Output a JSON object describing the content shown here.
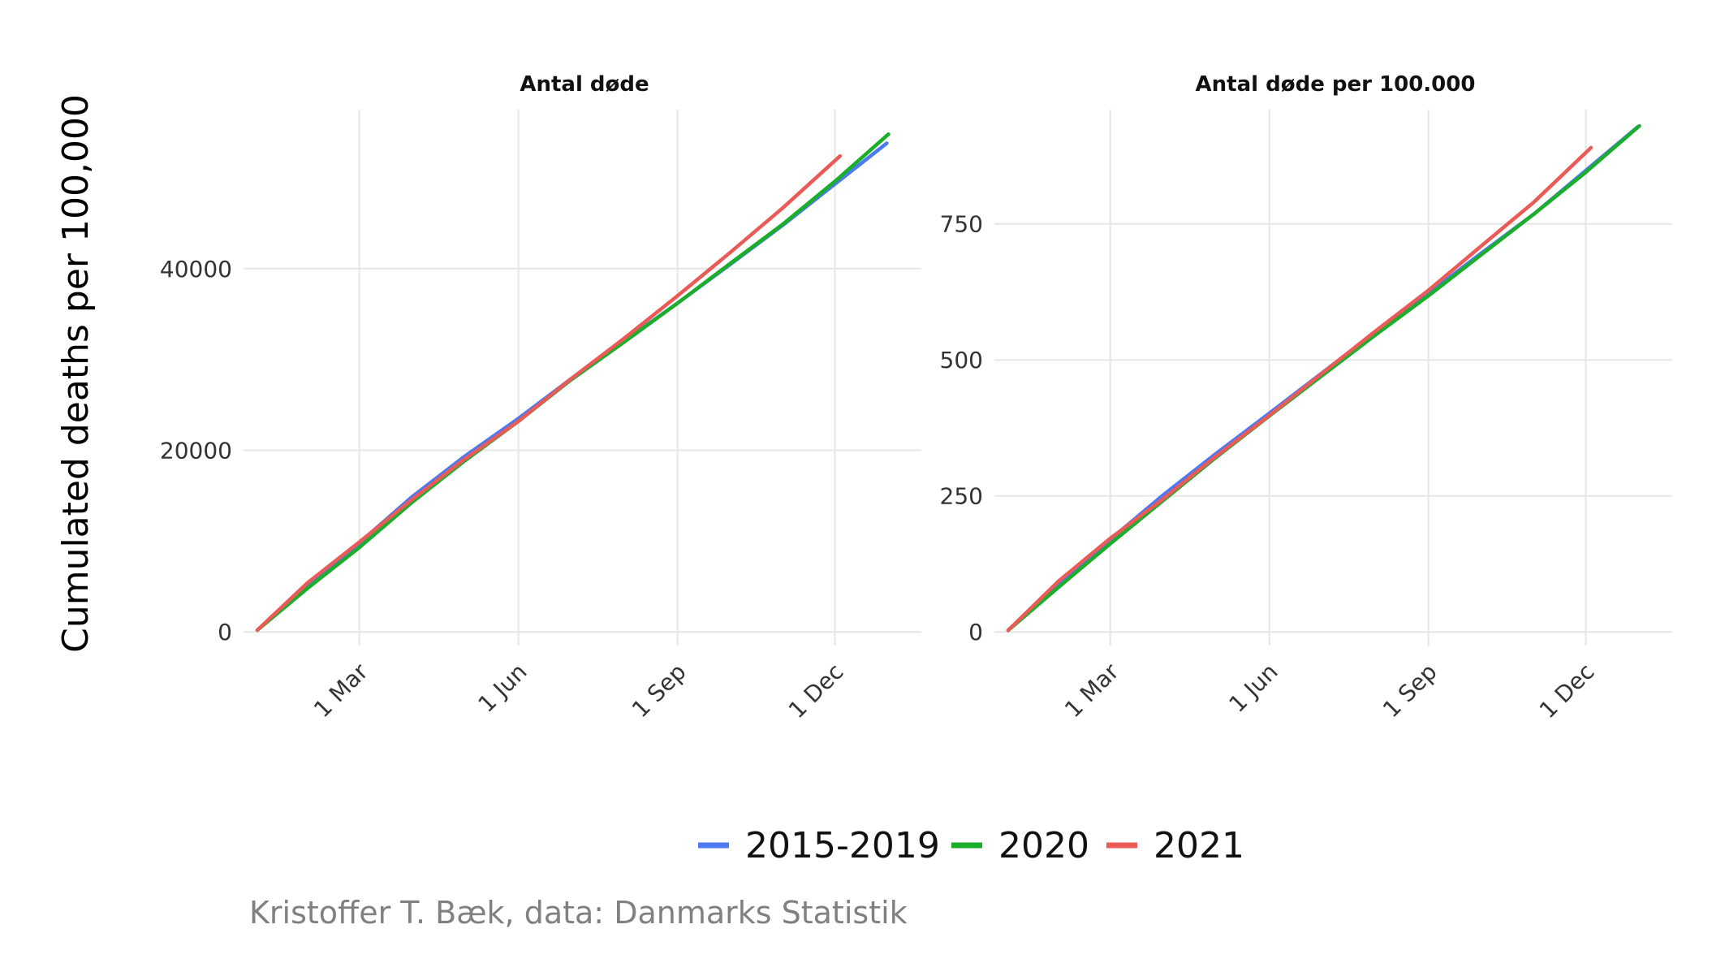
{
  "ylabel": "Cumulated deaths per 100,000",
  "caption": "Kristoffer T. Bæk, data: Danmarks Statistik",
  "colors": {
    "2015-2019": "#4d79f2",
    "2020": "#1aae2a",
    "2021": "#ea5a57"
  },
  "legend": {
    "placement": "bottom",
    "items": [
      {
        "label": "2015-2019",
        "color": "#4d79f2"
      },
      {
        "label": "2020",
        "color": "#1aae2a"
      },
      {
        "label": "2021",
        "color": "#ea5a57"
      }
    ]
  },
  "chart_data": [
    {
      "type": "line",
      "title": "Antal døde",
      "x_unit": "day of year",
      "x_ticks": [
        {
          "label": "1 Mar",
          "day": 60
        },
        {
          "label": "1 Jun",
          "day": 152
        },
        {
          "label": "1 Sep",
          "day": 244
        },
        {
          "label": "1 Dec",
          "day": 335
        }
      ],
      "xlim": [
        -7,
        385
      ],
      "y_ticks": [
        0,
        20000,
        40000
      ],
      "ylim": [
        -1500,
        57500
      ],
      "grid": true,
      "series": [
        {
          "name": "2015-2019",
          "color": "#4d79f2",
          "x": [
            1,
            30,
            60,
            90,
            120,
            152,
            182,
            213,
            244,
            274,
            305,
            335,
            365
          ],
          "y": [
            200,
            5100,
            9800,
            14800,
            19200,
            23500,
            27800,
            32000,
            36200,
            40400,
            44800,
            49300,
            53800
          ]
        },
        {
          "name": "2020",
          "color": "#1aae2a",
          "x": [
            1,
            30,
            60,
            90,
            120,
            152,
            182,
            213,
            244,
            274,
            305,
            335,
            366
          ],
          "y": [
            200,
            4800,
            9300,
            14200,
            18700,
            23200,
            27700,
            31900,
            36200,
            40500,
            44900,
            49600,
            54800
          ]
        },
        {
          "name": "2021",
          "color": "#ea5a57",
          "x": [
            1,
            30,
            60,
            90,
            120,
            152,
            182,
            213,
            244,
            274,
            305,
            338
          ],
          "y": [
            200,
            5400,
            9900,
            14500,
            18900,
            23200,
            27800,
            32300,
            37000,
            41700,
            46700,
            52400
          ]
        }
      ]
    },
    {
      "type": "line",
      "title": "Antal døde per 100.000",
      "x_unit": "day of year",
      "x_ticks": [
        {
          "label": "1 Mar",
          "day": 60
        },
        {
          "label": "1 Jun",
          "day": 152
        },
        {
          "label": "1 Sep",
          "day": 244
        },
        {
          "label": "1 Dec",
          "day": 335
        }
      ],
      "xlim": [
        -7,
        385
      ],
      "y_ticks": [
        0,
        250,
        500,
        750
      ],
      "ylim": [
        -25,
        960
      ],
      "grid": true,
      "series": [
        {
          "name": "2015-2019",
          "color": "#4d79f2",
          "x": [
            1,
            30,
            60,
            90,
            120,
            152,
            182,
            213,
            244,
            274,
            305,
            335,
            365
          ],
          "y": [
            3,
            88,
            170,
            250,
            325,
            402,
            475,
            550,
            622,
            695,
            768,
            848,
            928
          ]
        },
        {
          "name": "2020",
          "color": "#1aae2a",
          "x": [
            1,
            30,
            60,
            90,
            120,
            152,
            182,
            213,
            244,
            274,
            305,
            335,
            366
          ],
          "y": [
            3,
            82,
            162,
            240,
            318,
            397,
            470,
            545,
            618,
            692,
            768,
            845,
            930
          ]
        },
        {
          "name": "2021",
          "color": "#ea5a57",
          "x": [
            1,
            30,
            60,
            90,
            120,
            152,
            182,
            213,
            244,
            274,
            305,
            338
          ],
          "y": [
            3,
            93,
            172,
            243,
            320,
            398,
            474,
            552,
            628,
            708,
            790,
            890
          ]
        }
      ]
    }
  ]
}
